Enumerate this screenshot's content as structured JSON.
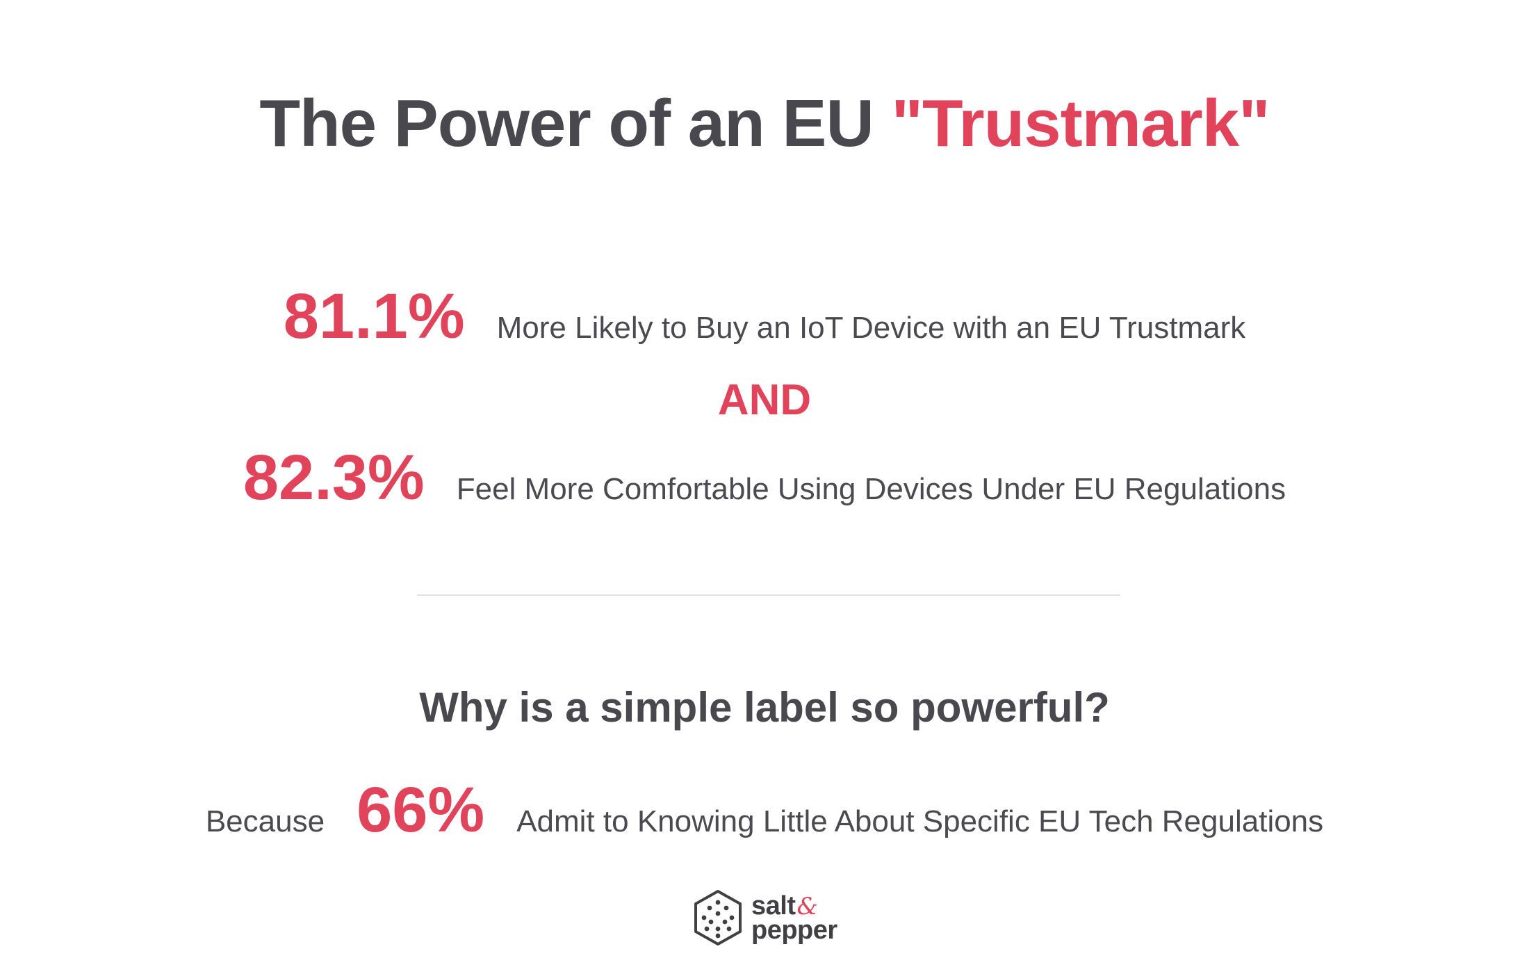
{
  "title": {
    "main": "The Power of an EU ",
    "highlight": "\"Trustmark\""
  },
  "stats": [
    {
      "percent": "81.1%",
      "text": "More Likely to Buy an IoT Device with an EU Trustmark"
    },
    {
      "percent": "82.3%",
      "text": "Feel More Comfortable Using Devices Under EU Regulations"
    }
  ],
  "connector": "AND",
  "question": "Why is a simple label so powerful?",
  "reason": {
    "prefix": "Because",
    "percent": "66%",
    "text": "Admit to Knowing Little About Specific EU Tech Regulations"
  },
  "logo": {
    "line1": "salt",
    "ampersand": "&",
    "line2": "pepper",
    "icon": "hexagon-dots-icon"
  },
  "colors": {
    "accent": "#e0435a",
    "text": "#4a4a50",
    "divider": "#e2e2e4"
  }
}
